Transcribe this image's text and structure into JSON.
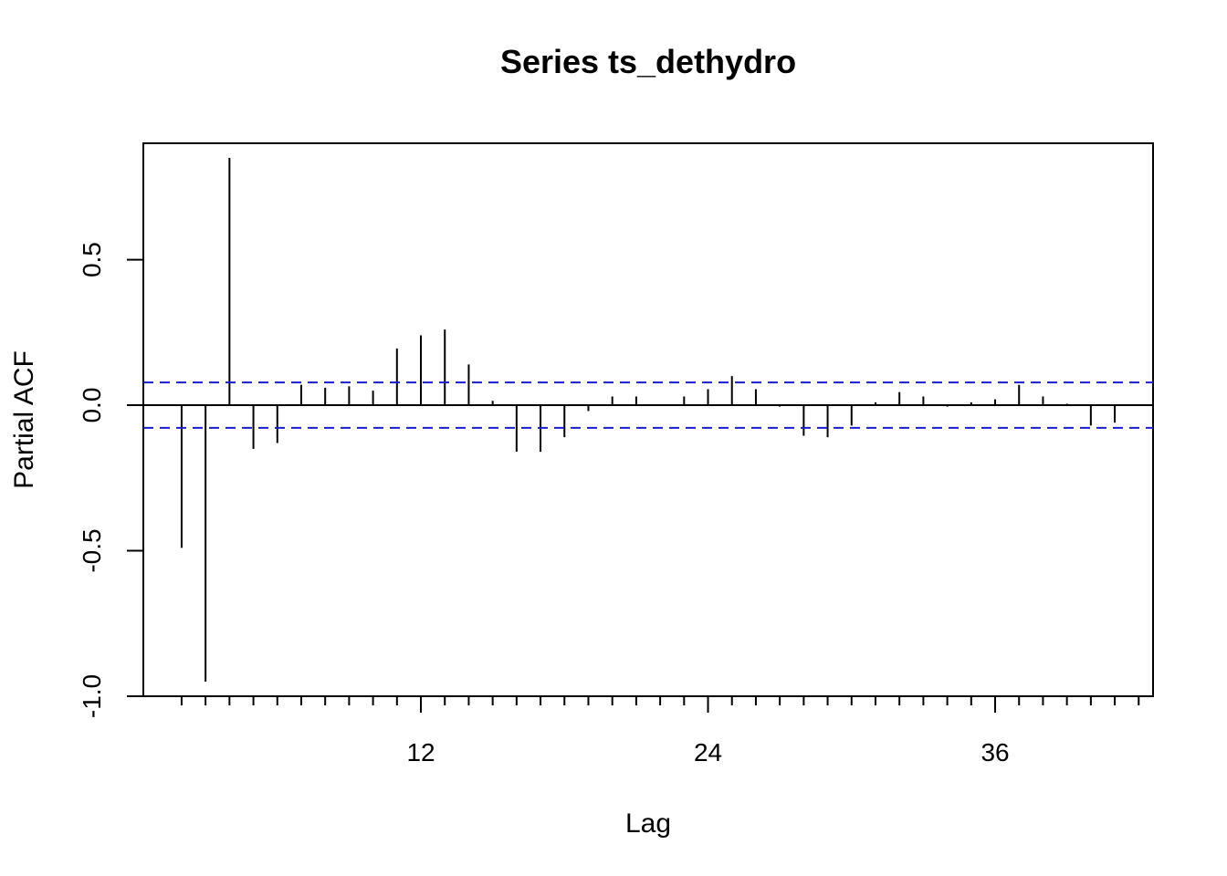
{
  "chart_data": {
    "type": "bar",
    "title": "Series  ts_dethydro",
    "xlabel": "Lag",
    "ylabel": "Partial ACF",
    "xlim": [
      0.4,
      42.6
    ],
    "ylim": [
      -1.0,
      0.9
    ],
    "x_ticks": [
      12,
      24,
      36
    ],
    "y_ticks": [
      -1.0,
      -0.5,
      0.0,
      0.5
    ],
    "y_tick_labels": [
      "-1.0",
      "-0.5",
      "0.0",
      "0.5"
    ],
    "confidence_bound": 0.078,
    "grid": false,
    "lags": [
      2,
      3,
      4,
      5,
      6,
      7,
      8,
      9,
      10,
      11,
      12,
      13,
      14,
      15,
      16,
      17,
      18,
      19,
      20,
      21,
      22,
      23,
      24,
      25,
      26,
      27,
      28,
      29,
      30,
      31,
      32,
      33,
      34,
      35,
      36,
      37,
      38,
      39,
      40,
      41,
      42
    ],
    "values": [
      -0.49,
      -0.95,
      0.85,
      -0.15,
      -0.13,
      0.07,
      0.06,
      0.065,
      0.05,
      0.195,
      0.24,
      0.26,
      0.14,
      0.015,
      -0.16,
      -0.16,
      -0.11,
      -0.02,
      0.03,
      0.03,
      0.0,
      0.03,
      0.055,
      0.1,
      0.055,
      -0.005,
      -0.105,
      -0.11,
      -0.07,
      0.01,
      0.045,
      0.03,
      -0.005,
      0.01,
      0.02,
      0.07,
      0.03,
      0.005,
      -0.07,
      -0.06,
      0.0
    ]
  }
}
